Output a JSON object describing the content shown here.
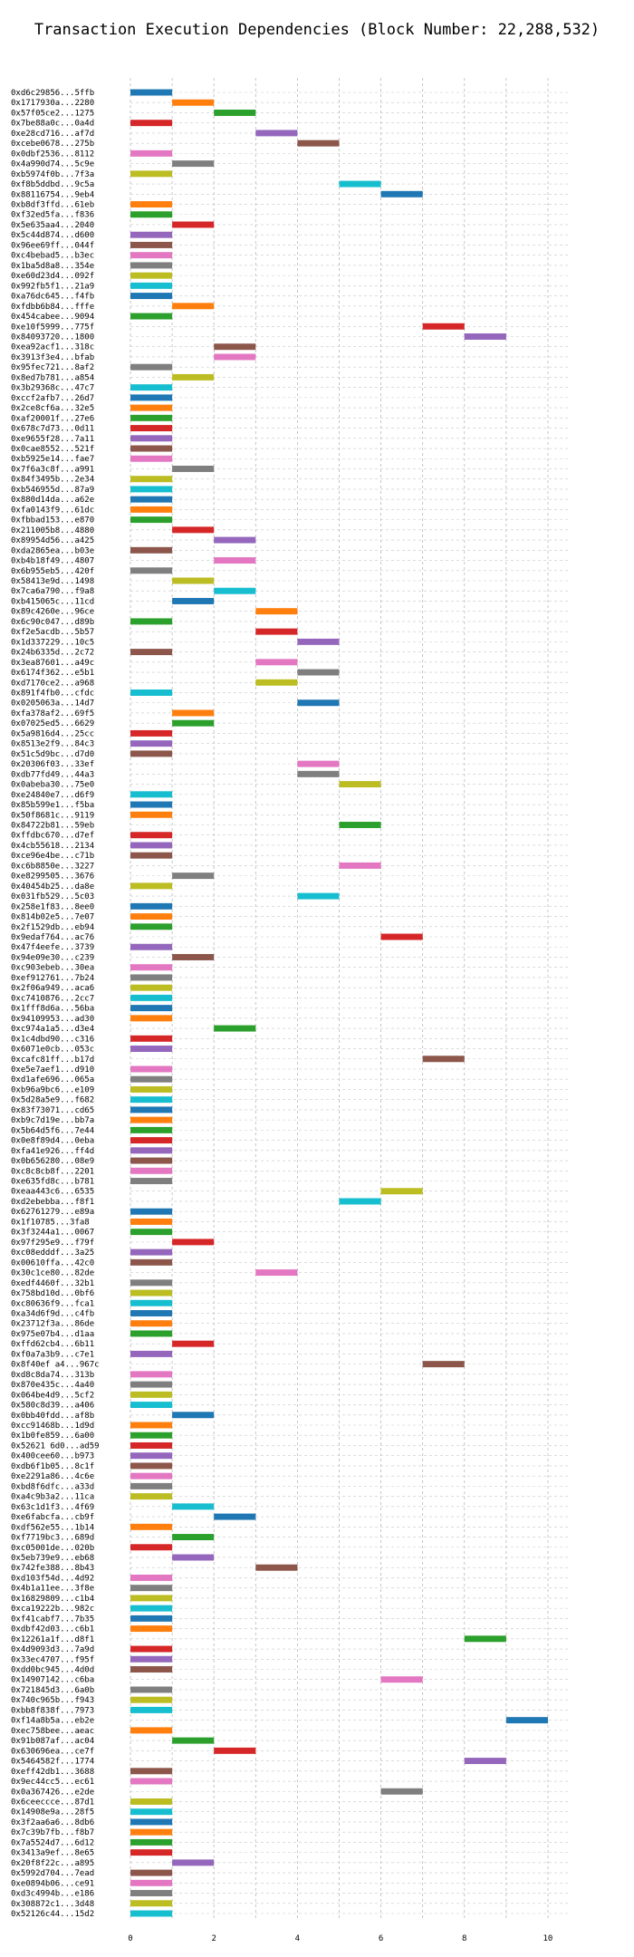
{
  "chart_data": {
    "type": "bar",
    "orientation": "horizontal",
    "title": "Transaction Execution Dependencies (Block Number: 22,288,532)",
    "xlabel": "",
    "ylabel": "",
    "xlim": [
      0,
      10.5
    ],
    "xticks": [
      0,
      2,
      4,
      6,
      8,
      10
    ],
    "grid": "dashed, both axes",
    "palette": [
      "#1f77b4",
      "#ff7f0e",
      "#2ca02c",
      "#d62728",
      "#9467bd",
      "#8c564b",
      "#e377c2",
      "#7f7f7f",
      "#bcbd22",
      "#17becf"
    ],
    "transactions": [
      {
        "label": "0xd6c29856...5ffb",
        "start": 0,
        "end": 1
      },
      {
        "label": "0x1717930a...2280",
        "start": 1,
        "end": 2
      },
      {
        "label": "0x57f05ce2...1275",
        "start": 2,
        "end": 3
      },
      {
        "label": "0x7be88a0c...0a4d",
        "start": 0,
        "end": 1
      },
      {
        "label": "0xe28cd716...af7d",
        "start": 3,
        "end": 4
      },
      {
        "label": "0xcebe0678...275b",
        "start": 4,
        "end": 5
      },
      {
        "label": "0x0dbf2536...8112",
        "start": 0,
        "end": 1
      },
      {
        "label": "0x4a990d74...5c9e",
        "start": 1,
        "end": 2
      },
      {
        "label": "0xb5974f0b...7f3a",
        "start": 0,
        "end": 1
      },
      {
        "label": "0xf8b5ddbd...9c5a",
        "start": 5,
        "end": 6
      },
      {
        "label": "0x88116754...9eb4",
        "start": 6,
        "end": 7
      },
      {
        "label": "0xb8df3ffd...61eb",
        "start": 0,
        "end": 1
      },
      {
        "label": "0xf32ed5fa...f836",
        "start": 0,
        "end": 1
      },
      {
        "label": "0x5e635aa4...2040",
        "start": 1,
        "end": 2
      },
      {
        "label": "0x5c44d874...d600",
        "start": 0,
        "end": 1
      },
      {
        "label": "0x96ee69ff...044f",
        "start": 0,
        "end": 1
      },
      {
        "label": "0xc4bebad5...b3ec",
        "start": 0,
        "end": 1
      },
      {
        "label": "0x1ba5d8a8...354e",
        "start": 0,
        "end": 1
      },
      {
        "label": "0xe60d23d4...092f",
        "start": 0,
        "end": 1
      },
      {
        "label": "0x992fb5f1...21a9",
        "start": 0,
        "end": 1
      },
      {
        "label": "0xa76dc645...f4fb",
        "start": 0,
        "end": 1
      },
      {
        "label": "0xfdbb6b84...fffe",
        "start": 1,
        "end": 2
      },
      {
        "label": "0x454cabee...9094",
        "start": 0,
        "end": 1
      },
      {
        "label": "0xe10f5999...775f",
        "start": 7,
        "end": 8
      },
      {
        "label": "0x84093720...1800",
        "start": 8,
        "end": 9
      },
      {
        "label": "0xea92acf1...318c",
        "start": 2,
        "end": 3
      },
      {
        "label": "0x3913f3e4...bfab",
        "start": 2,
        "end": 3
      },
      {
        "label": "0x95fec721...8af2",
        "start": 0,
        "end": 1
      },
      {
        "label": "0x8ed7b781...a854",
        "start": 1,
        "end": 2
      },
      {
        "label": "0x3b29368c...47c7",
        "start": 0,
        "end": 1
      },
      {
        "label": "0xccf2afb7...26d7",
        "start": 0,
        "end": 1
      },
      {
        "label": "0x2ce8cf6a...32e5",
        "start": 0,
        "end": 1
      },
      {
        "label": "0xaf20001f...27e6",
        "start": 0,
        "end": 1
      },
      {
        "label": "0x678c7d73...0d11",
        "start": 0,
        "end": 1
      },
      {
        "label": "0xe9655f28...7a11",
        "start": 0,
        "end": 1
      },
      {
        "label": "0x0cae8552...521f",
        "start": 0,
        "end": 1
      },
      {
        "label": "0xb5925e14...fae7",
        "start": 0,
        "end": 1
      },
      {
        "label": "0x7f6a3c8f...a991",
        "start": 1,
        "end": 2
      },
      {
        "label": "0x84f3495b...2e34",
        "start": 0,
        "end": 1
      },
      {
        "label": "0xb546955d...87a9",
        "start": 0,
        "end": 1
      },
      {
        "label": "0x880d14da...a62e",
        "start": 0,
        "end": 1
      },
      {
        "label": "0xfa0143f9...61dc",
        "start": 0,
        "end": 1
      },
      {
        "label": "0xfbbad153...e870",
        "start": 0,
        "end": 1
      },
      {
        "label": "0x211005b8...4880",
        "start": 1,
        "end": 2
      },
      {
        "label": "0x89954d56...a425",
        "start": 2,
        "end": 3
      },
      {
        "label": "0xda2865ea...b03e",
        "start": 0,
        "end": 1
      },
      {
        "label": "0xb4b18f49...4807",
        "start": 2,
        "end": 3
      },
      {
        "label": "0x6b955eb5...420f",
        "start": 0,
        "end": 1
      },
      {
        "label": "0x58413e9d...1498",
        "start": 1,
        "end": 2
      },
      {
        "label": "0x7ca6a790...f9a8",
        "start": 2,
        "end": 3
      },
      {
        "label": "0xb415065c...11cd",
        "start": 1,
        "end": 2
      },
      {
        "label": "0x89c4260e...96ce",
        "start": 3,
        "end": 4
      },
      {
        "label": "0x6c90c047...d89b",
        "start": 0,
        "end": 1
      },
      {
        "label": "0xf2e5acdb...5b57",
        "start": 3,
        "end": 4
      },
      {
        "label": "0x1d337229...10c5",
        "start": 4,
        "end": 5
      },
      {
        "label": "0x24b6335d...2c72",
        "start": 0,
        "end": 1
      },
      {
        "label": "0x3ea87601...a49c",
        "start": 3,
        "end": 4
      },
      {
        "label": "0x6174f362...e5b1",
        "start": 4,
        "end": 5
      },
      {
        "label": "0xd7170ce2...a968",
        "start": 3,
        "end": 4
      },
      {
        "label": "0x891f4fb0...cfdc",
        "start": 0,
        "end": 1
      },
      {
        "label": "0x0205063a...14d7",
        "start": 4,
        "end": 5
      },
      {
        "label": "0xfa378af2...69f5",
        "start": 1,
        "end": 2
      },
      {
        "label": "0x07025ed5...6629",
        "start": 1,
        "end": 2
      },
      {
        "label": "0x5a9816d4...25cc",
        "start": 0,
        "end": 1
      },
      {
        "label": "0x8513e2f9...84c3",
        "start": 0,
        "end": 1
      },
      {
        "label": "0x51c5d9bc...d7d0",
        "start": 0,
        "end": 1
      },
      {
        "label": "0x20306f03...33ef",
        "start": 4,
        "end": 5
      },
      {
        "label": "0xdb77fd49...44a3",
        "start": 4,
        "end": 5
      },
      {
        "label": "0x0abeba30...75e0",
        "start": 5,
        "end": 6
      },
      {
        "label": "0xe24840e7...d6f9",
        "start": 0,
        "end": 1
      },
      {
        "label": "0x85b599e1...f5ba",
        "start": 0,
        "end": 1
      },
      {
        "label": "0x50f8681c...9119",
        "start": 0,
        "end": 1
      },
      {
        "label": "0x84722b81...59eb",
        "start": 5,
        "end": 6
      },
      {
        "label": "0xffdbc670...d7ef",
        "start": 0,
        "end": 1
      },
      {
        "label": "0x4cb55618...2134",
        "start": 0,
        "end": 1
      },
      {
        "label": "0xce96e4be...c71b",
        "start": 0,
        "end": 1
      },
      {
        "label": "0xc6b8850e...3227",
        "start": 5,
        "end": 6
      },
      {
        "label": "0xe8299505...3676",
        "start": 1,
        "end": 2
      },
      {
        "label": "0x40454b25...da8e",
        "start": 0,
        "end": 1
      },
      {
        "label": "0x031fb529...5c03",
        "start": 4,
        "end": 5
      },
      {
        "label": "0x258e1f83...8ee0",
        "start": 0,
        "end": 1
      },
      {
        "label": "0x814b02e5...7e07",
        "start": 0,
        "end": 1
      },
      {
        "label": "0x2f1529db...eb94",
        "start": 0,
        "end": 1
      },
      {
        "label": "0x9edaf764...ac76",
        "start": 6,
        "end": 7
      },
      {
        "label": "0x47f4eefe...3739",
        "start": 0,
        "end": 1
      },
      {
        "label": "0x94e09e30...c239",
        "start": 1,
        "end": 2
      },
      {
        "label": "0xc903ebeb...30ea",
        "start": 0,
        "end": 1
      },
      {
        "label": "0xef912761...7b24",
        "start": 0,
        "end": 1
      },
      {
        "label": "0x2f06a949...aca6",
        "start": 0,
        "end": 1
      },
      {
        "label": "0xc7410876...2cc7",
        "start": 0,
        "end": 1
      },
      {
        "label": "0x1fff8d6a...56ba",
        "start": 0,
        "end": 1
      },
      {
        "label": "0x94109953...ad30",
        "start": 0,
        "end": 1
      },
      {
        "label": "0xc974a1a5...d3e4",
        "start": 2,
        "end": 3
      },
      {
        "label": "0x1c4dbd90...c316",
        "start": 0,
        "end": 1
      },
      {
        "label": "0x6071e0cb...053c",
        "start": 0,
        "end": 1
      },
      {
        "label": "0xcafc81ff...b17d",
        "start": 7,
        "end": 8
      },
      {
        "label": "0xe5e7aef1...d910",
        "start": 0,
        "end": 1
      },
      {
        "label": "0xd1afe696...065a",
        "start": 0,
        "end": 1
      },
      {
        "label": "0xb96a9bc6...e109",
        "start": 0,
        "end": 1
      },
      {
        "label": "0x5d28a5e9...f682",
        "start": 0,
        "end": 1
      },
      {
        "label": "0x83f73071...cd65",
        "start": 0,
        "end": 1
      },
      {
        "label": "0xb9c7d19e...bb7a",
        "start": 0,
        "end": 1
      },
      {
        "label": "0x5b64d5f6...7e44",
        "start": 0,
        "end": 1
      },
      {
        "label": "0x0e8f89d4...0eba",
        "start": 0,
        "end": 1
      },
      {
        "label": "0xfa41e926...ff4d",
        "start": 0,
        "end": 1
      },
      {
        "label": "0x0b656280...08e9",
        "start": 0,
        "end": 1
      },
      {
        "label": "0xc8c8cb8f...2201",
        "start": 0,
        "end": 1
      },
      {
        "label": "0xe635fd8c...b781",
        "start": 0,
        "end": 1
      },
      {
        "label": "0xeaa443c6...6535",
        "start": 6,
        "end": 7
      },
      {
        "label": "0xd2ebebba...f8f1",
        "start": 5,
        "end": 6
      },
      {
        "label": "0x62761279...e89a",
        "start": 0,
        "end": 1
      },
      {
        "label": "0x1f10785...3fa8",
        "start": 0,
        "end": 1
      },
      {
        "label": "0x3f3244a1...0067",
        "start": 0,
        "end": 1
      },
      {
        "label": "0x97f295e9...f79f",
        "start": 1,
        "end": 2
      },
      {
        "label": "0xc08edddf...3a25",
        "start": 0,
        "end": 1
      },
      {
        "label": "0x00610ffa...42c0",
        "start": 0,
        "end": 1
      },
      {
        "label": "0x30c1ce80...82de",
        "start": 3,
        "end": 4
      },
      {
        "label": "0xedf4460f...32b1",
        "start": 0,
        "end": 1
      },
      {
        "label": "0x758bd10d...0bf6",
        "start": 0,
        "end": 1
      },
      {
        "label": "0xc80636f9...fca1",
        "start": 0,
        "end": 1
      },
      {
        "label": "0xa34d6f9d...c4fb",
        "start": 0,
        "end": 1
      },
      {
        "label": "0x23712f3a...86de",
        "start": 0,
        "end": 1
      },
      {
        "label": "0x975e07b4...d1aa",
        "start": 0,
        "end": 1
      },
      {
        "label": "0xffd62cb4...6b11",
        "start": 1,
        "end": 2
      },
      {
        "label": "0xf0a7a3b9...c7e1",
        "start": 0,
        "end": 1
      },
      {
        "label": "0x8f40ef a4...967c",
        "start": 7,
        "end": 8
      },
      {
        "label": "0xd8c8da74...313b",
        "start": 0,
        "end": 1
      },
      {
        "label": "0x870e435c...4a40",
        "start": 0,
        "end": 1
      },
      {
        "label": "0x064be4d9...5cf2",
        "start": 0,
        "end": 1
      },
      {
        "label": "0x580c8d39...a406",
        "start": 0,
        "end": 1
      },
      {
        "label": "0x0bb40fdd...af8b",
        "start": 1,
        "end": 2
      },
      {
        "label": "0xcc91468b...1d9d",
        "start": 0,
        "end": 1
      },
      {
        "label": "0x1b0fe859...6a00",
        "start": 0,
        "end": 1
      },
      {
        "label": "0x52621 6d0...ad59",
        "start": 0,
        "end": 1
      },
      {
        "label": "0x400cee60...b973",
        "start": 0,
        "end": 1
      },
      {
        "label": "0xdb6f1b05...8c1f",
        "start": 0,
        "end": 1
      },
      {
        "label": "0xe2291a86...4c6e",
        "start": 0,
        "end": 1
      },
      {
        "label": "0xbd8f6dfc...a33d",
        "start": 0,
        "end": 1
      },
      {
        "label": "0xa4c9b3a2...11ca",
        "start": 0,
        "end": 1
      },
      {
        "label": "0x63c1d1f3...4f69",
        "start": 1,
        "end": 2
      },
      {
        "label": "0xe6fabcfa...cb9f",
        "start": 2,
        "end": 3
      },
      {
        "label": "0xdf562e55...1b14",
        "start": 0,
        "end": 1
      },
      {
        "label": "0xf7719bc3...689d",
        "start": 1,
        "end": 2
      },
      {
        "label": "0xc05001de...020b",
        "start": 0,
        "end": 1
      },
      {
        "label": "0x5eb739e9...eb68",
        "start": 1,
        "end": 2
      },
      {
        "label": "0x742fe388...8b43",
        "start": 3,
        "end": 4
      },
      {
        "label": "0xd103f54d...4d92",
        "start": 0,
        "end": 1
      },
      {
        "label": "0x4b1a11ee...3f8e",
        "start": 0,
        "end": 1
      },
      {
        "label": "0x16829809...c1b4",
        "start": 0,
        "end": 1
      },
      {
        "label": "0xca19222b...982c",
        "start": 0,
        "end": 1
      },
      {
        "label": "0xf41cabf7...7b35",
        "start": 0,
        "end": 1
      },
      {
        "label": "0xdbf42d03...c6b1",
        "start": 0,
        "end": 1
      },
      {
        "label": "0x12261a1f...d8f1",
        "start": 8,
        "end": 9
      },
      {
        "label": "0x4d9093d3...7a9d",
        "start": 0,
        "end": 1
      },
      {
        "label": "0x33ec4707...f95f",
        "start": 0,
        "end": 1
      },
      {
        "label": "0xdd0bc945...4d0d",
        "start": 0,
        "end": 1
      },
      {
        "label": "0x14907142...c6ba",
        "start": 6,
        "end": 7
      },
      {
        "label": "0x721845d3...6a0b",
        "start": 0,
        "end": 1
      },
      {
        "label": "0x740c965b...f943",
        "start": 0,
        "end": 1
      },
      {
        "label": "0xbb8f838f...7973",
        "start": 0,
        "end": 1
      },
      {
        "label": "0xf14a8b5a...eb2e",
        "start": 9,
        "end": 10
      },
      {
        "label": "0xec758bee...aeac",
        "start": 0,
        "end": 1
      },
      {
        "label": "0x91b087af...ac04",
        "start": 1,
        "end": 2
      },
      {
        "label": "0x630696ea...ce7f",
        "start": 2,
        "end": 3
      },
      {
        "label": "0x5464582f...1774",
        "start": 8,
        "end": 9
      },
      {
        "label": "0xeff42db1...3688",
        "start": 0,
        "end": 1
      },
      {
        "label": "0x9ec44cc5...ec61",
        "start": 0,
        "end": 1
      },
      {
        "label": "0x0a367426...e2de",
        "start": 6,
        "end": 7
      },
      {
        "label": "0x6ceeccce...87d1",
        "start": 0,
        "end": 1
      },
      {
        "label": "0x14908e9a...28f5",
        "start": 0,
        "end": 1
      },
      {
        "label": "0x3f2aa6a6...8db6",
        "start": 0,
        "end": 1
      },
      {
        "label": "0x7c39b7fb...f8b7",
        "start": 0,
        "end": 1
      },
      {
        "label": "0x7a5524d7...6d12",
        "start": 0,
        "end": 1
      },
      {
        "label": "0x3413a9ef...8e65",
        "start": 0,
        "end": 1
      },
      {
        "label": "0x20f8f22c...a895",
        "start": 1,
        "end": 2
      },
      {
        "label": "0x5992d704...7ead",
        "start": 0,
        "end": 1
      },
      {
        "label": "0xe0894b06...ce91",
        "start": 0,
        "end": 1
      },
      {
        "label": "0xd3c4994b...e186",
        "start": 0,
        "end": 1
      },
      {
        "label": "0x308872c1...3d48",
        "start": 0,
        "end": 1
      },
      {
        "label": "0x52126c44...15d2",
        "start": 0,
        "end": 1
      }
    ]
  }
}
